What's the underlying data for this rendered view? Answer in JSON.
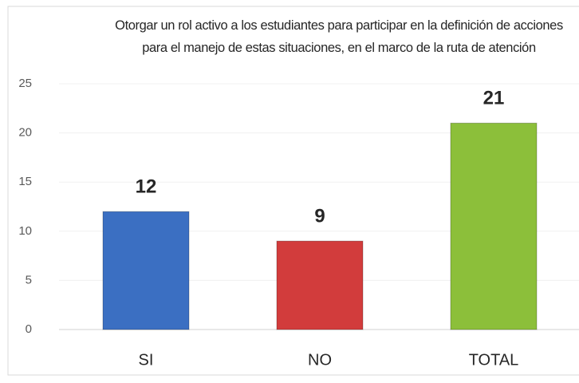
{
  "chart_data": {
    "type": "bar",
    "title": "Otorgar  un rol activo a los estudiantes para participar en la definición de acciones para el manejo de estas situaciones, en el marco de la ruta de atención",
    "categories": [
      "SI",
      "NO",
      "TOTAL"
    ],
    "values": [
      12,
      9,
      21
    ],
    "colors": [
      "#3b6fc2",
      "#d23c3c",
      "#8cbf3a"
    ],
    "ylim": [
      0,
      25
    ],
    "yticks": [
      0,
      5,
      10,
      15,
      20,
      25
    ],
    "grid": true
  }
}
